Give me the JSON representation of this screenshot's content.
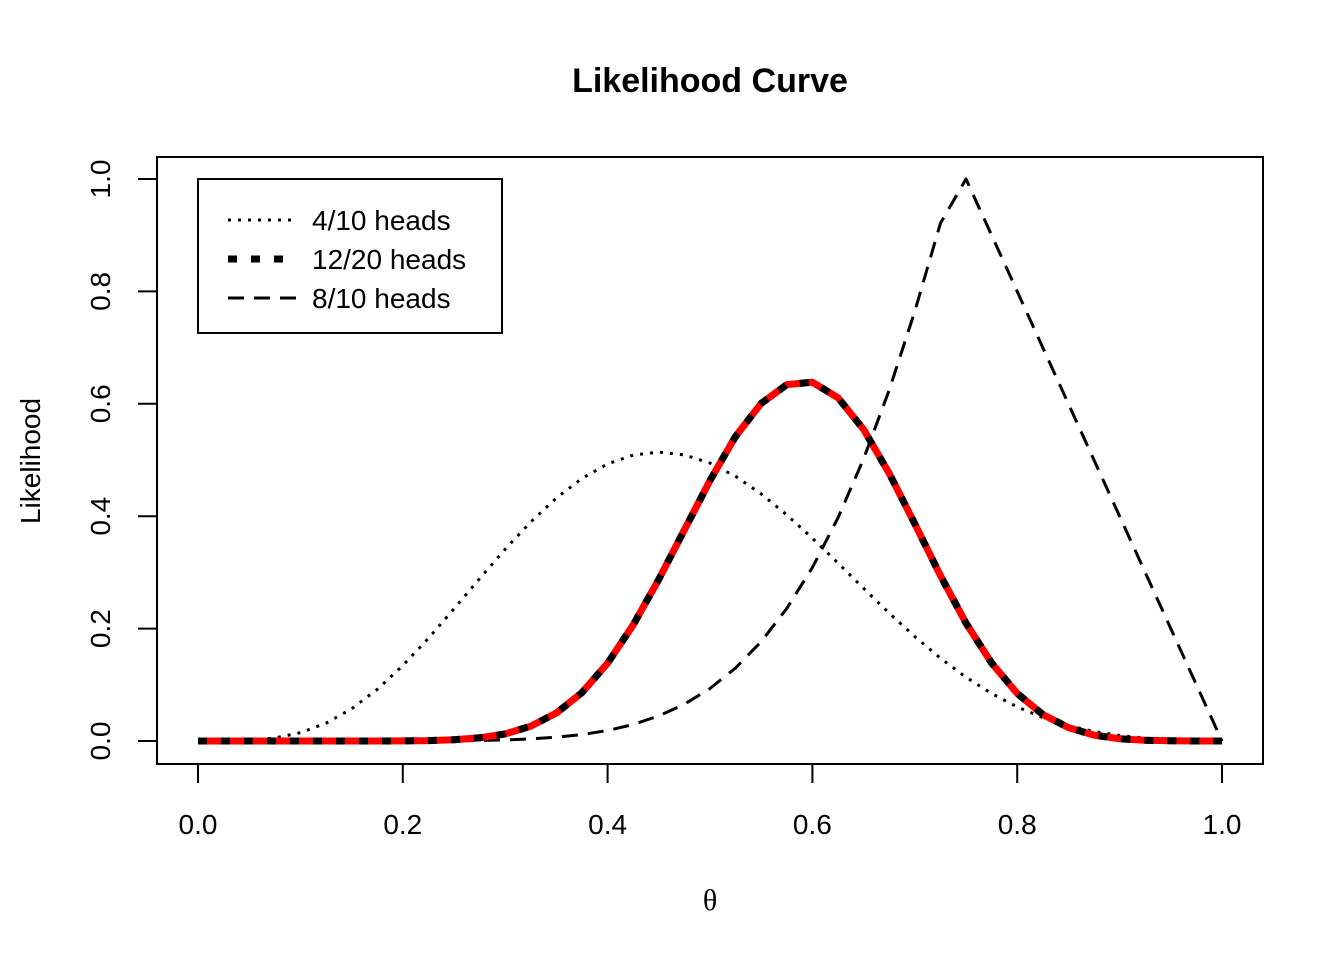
{
  "chart_data": {
    "type": "line",
    "title": "Likelihood Curve",
    "xlabel": "θ",
    "ylabel": "Likelihood",
    "xlim": [
      0,
      1
    ],
    "ylim": [
      0,
      1
    ],
    "x_ticks": [
      0.0,
      0.2,
      0.4,
      0.6,
      0.8,
      1.0
    ],
    "x_tick_labels": [
      "0.0",
      "0.2",
      "0.4",
      "0.6",
      "0.8",
      "1.0"
    ],
    "y_ticks": [
      0.0,
      0.2,
      0.4,
      0.6,
      0.8,
      1.0
    ],
    "y_tick_labels": [
      "0.0",
      "0.2",
      "0.4",
      "0.6",
      "0.8",
      "1.0"
    ],
    "grid": false,
    "legend_position": "top-left",
    "x": [
      0.0,
      0.025,
      0.05,
      0.075,
      0.1,
      0.125,
      0.15,
      0.175,
      0.2,
      0.225,
      0.25,
      0.275,
      0.3,
      0.325,
      0.35,
      0.375,
      0.4,
      0.425,
      0.45,
      0.475,
      0.5,
      0.525,
      0.55,
      0.575,
      0.6,
      0.625,
      0.65,
      0.675,
      0.7,
      0.725,
      0.75,
      0.775,
      0.8,
      0.825,
      0.85,
      0.875,
      0.9,
      0.925,
      0.95,
      0.975,
      1.0
    ],
    "series": [
      {
        "name": "4/10 heads",
        "color": "#000000",
        "line_style": "dotted",
        "values": [
          0,
          0.0001,
          0.0012,
          0.0053,
          0.0147,
          0.0317,
          0.0573,
          0.0918,
          0.1342,
          0.1828,
          0.2352,
          0.2889,
          0.3412,
          0.3898,
          0.4324,
          0.4673,
          0.493,
          0.5087,
          0.5141,
          0.5091,
          0.4944,
          0.4708,
          0.4396,
          0.4024,
          0.3608,
          0.3166,
          0.2717,
          0.2276,
          0.1858,
          0.1475,
          0.1135,
          0.0845,
          0.0606,
          0.0417,
          0.0273,
          0.0169,
          0.0097,
          0.0052,
          0.0025,
          0.0011,
          0.0004
        ]
      },
      {
        "name": "12/20 heads",
        "color": "#000000",
        "line_style": "dashed-thick",
        "values": [
          0,
          0,
          0,
          0,
          0,
          0,
          0,
          0,
          0.0002,
          0.0008,
          0.0023,
          0.0057,
          0.0127,
          0.0264,
          0.0498,
          0.0862,
          0.1384,
          0.2066,
          0.2878,
          0.3757,
          0.4636,
          0.5422,
          0.6008,
          0.6342,
          0.6384,
          0.6108,
          0.5545,
          0.4764,
          0.3864,
          0.2944,
          0.2098,
          0.1388,
          0.0847,
          0.0472,
          0.0238,
          0.0105,
          0.0039,
          0.0012,
          0.0003,
          0,
          0
        ]
      },
      {
        "name": "",
        "color": "#ff0000",
        "line_style": "solid",
        "values": [
          0,
          0,
          0,
          0,
          0,
          0,
          0,
          0,
          0.0002,
          0.0008,
          0.0023,
          0.0057,
          0.0127,
          0.0264,
          0.0498,
          0.0862,
          0.1384,
          0.2066,
          0.2878,
          0.3757,
          0.4636,
          0.5422,
          0.6008,
          0.6342,
          0.6384,
          0.6108,
          0.5545,
          0.4764,
          0.3864,
          0.2944,
          0.2098,
          0.1388,
          0.0847,
          0.0472,
          0.0238,
          0.0105,
          0.0039,
          0.0012,
          0.0003,
          0,
          0
        ]
      },
      {
        "name": "8/10 heads",
        "color": "#000000",
        "line_style": "dashed",
        "values": [
          0,
          0,
          0,
          0,
          0,
          0,
          0,
          0,
          0.0001,
          0.0001,
          0.0004,
          0.0009,
          0.0019,
          0.0037,
          0.0067,
          0.0114,
          0.0187,
          0.0294,
          0.0446,
          0.0654,
          0.0934,
          0.13,
          0.1769,
          0.2359,
          0.3088,
          0.3972,
          0.5021,
          0.6243,
          0.7646,
          0.921,
          1.0,
          0.9,
          0.8,
          0.7,
          0.6,
          0.5,
          0.4,
          0.3,
          0.2,
          0.1,
          0
        ]
      }
    ]
  }
}
